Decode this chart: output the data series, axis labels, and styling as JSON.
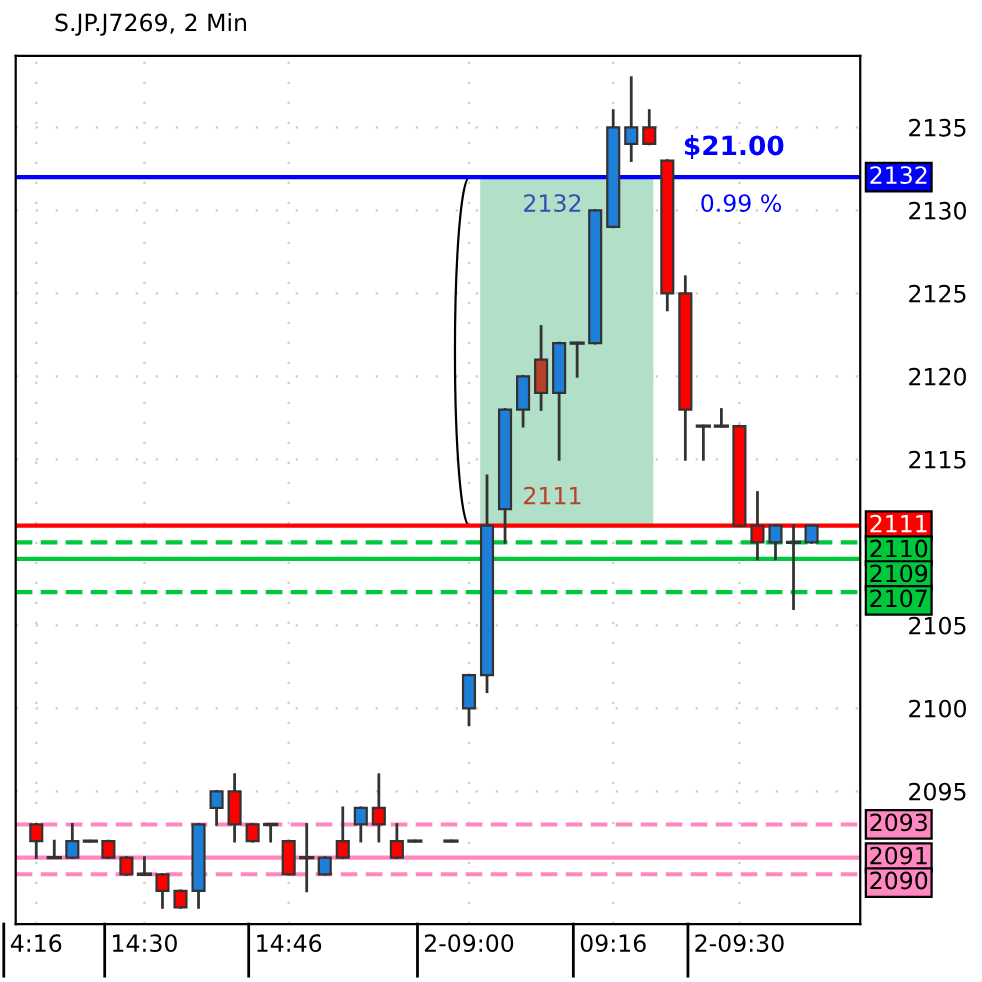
{
  "chart_data": {
    "type": "candlestick",
    "title": "S.JP.J7269, 2 Min",
    "categories": [
      "4:16",
      null,
      null,
      null,
      null,
      null,
      "14:30",
      null,
      null,
      null,
      null,
      null,
      null,
      null,
      "14:46",
      null,
      null,
      null,
      null,
      null,
      null,
      null,
      null,
      null,
      "2-09:00",
      null,
      null,
      null,
      null,
      null,
      null,
      null,
      "09:16",
      null,
      null,
      null,
      null,
      null,
      null,
      "2-09:30",
      null,
      null,
      null,
      null
    ],
    "ohlc": [
      [
        2093,
        2093,
        2091,
        2092
      ],
      [
        2091,
        2092,
        2091,
        2091
      ],
      [
        2091,
        2093,
        2091,
        2092
      ],
      [
        2092,
        2092,
        2092,
        2092
      ],
      [
        2092,
        2092,
        2091,
        2091
      ],
      [
        2091,
        2091,
        2090,
        2090
      ],
      [
        2090,
        2091,
        2090,
        2090
      ],
      [
        2090,
        2090,
        2088,
        2089
      ],
      [
        2089,
        2089,
        2088,
        2088
      ],
      [
        2089,
        2093,
        2088,
        2093
      ],
      [
        2094,
        2095,
        2093,
        2095
      ],
      [
        2095,
        2096,
        2092,
        2093
      ],
      [
        2093,
        2093,
        2092,
        2092
      ],
      [
        2093,
        2093,
        2092,
        2093
      ],
      [
        2092,
        2092,
        2090,
        2090
      ],
      [
        2091,
        2093,
        2089,
        2091
      ],
      [
        2090,
        2091,
        2090,
        2091
      ],
      [
        2092,
        2094,
        2091,
        2091
      ],
      [
        2093,
        2094,
        2092,
        2094
      ],
      [
        2094,
        2096,
        2092,
        2093
      ],
      [
        2092,
        2093,
        2091,
        2091
      ],
      [
        2092,
        2092,
        2092,
        2092
      ],
      null,
      [
        2092,
        2092,
        2092,
        2092
      ],
      [
        2100,
        2102,
        2099,
        2102
      ],
      [
        2102,
        2114,
        2101,
        2111
      ],
      [
        2112,
        2118,
        2110,
        2118
      ],
      [
        2118,
        2120,
        2117,
        2120
      ],
      [
        2121,
        2123,
        2118,
        2119
      ],
      [
        2119,
        2122,
        2115,
        2122
      ],
      [
        2122,
        2122,
        2120,
        2122
      ],
      [
        2122,
        2130,
        2122,
        2130
      ],
      [
        2129,
        2136,
        2129,
        2135
      ],
      [
        2134,
        2138,
        2133,
        2135
      ],
      [
        2135,
        2136,
        2134,
        2134
      ],
      [
        2133,
        2133,
        2124,
        2125
      ],
      [
        2125,
        2126,
        2115,
        2118
      ],
      [
        2117,
        2117,
        2115,
        2117
      ],
      [
        2117,
        2118,
        2117,
        2117
      ],
      [
        2117,
        2117,
        2111,
        2111
      ],
      [
        2111,
        2113,
        2109,
        2110
      ],
      [
        2110,
        2111,
        2109,
        2111
      ],
      [
        2110,
        2111,
        2106,
        2110
      ],
      [
        2110,
        2111,
        2110,
        2111
      ]
    ],
    "colors": [
      "#ff0000",
      "#333333",
      "#1e7fd8",
      "#333333",
      "#ff0000",
      "#ff0000",
      "#333333",
      "#ff0000",
      "#ff0000",
      "#1e7fd8",
      "#1e7fd8",
      "#ff0000",
      "#ff0000",
      "#333333",
      "#ff0000",
      "#333333",
      "#1e7fd8",
      "#ff0000",
      "#1e7fd8",
      "#ff0000",
      "#ff0000",
      "#333333",
      null,
      "#333333",
      "#1e7fd8",
      "#1e7fd8",
      "#1e7fd8",
      "#1e7fd8",
      "#b5412a",
      "#1e7fd8",
      "#333333",
      "#1e7fd8",
      "#1e7fd8",
      "#1e7fd8",
      "#ff0000",
      "#ff0000",
      "#ff0000",
      "#333333",
      "#333333",
      "#ff0000",
      "#ff0000",
      "#1e7fd8",
      "#333333",
      "#1e7fd8"
    ],
    "ylim": [
      2087,
      2139.3
    ],
    "yticks": [
      2095,
      2100,
      2105,
      2115,
      2120,
      2125,
      2130,
      2135
    ],
    "grid": true,
    "ref_lines": [
      {
        "axis": "y",
        "value": 2132,
        "label": "2132",
        "color": "#0000ff",
        "line_style": "solid"
      },
      {
        "axis": "y",
        "value": 2111,
        "label": "2111",
        "color": "#ff0000",
        "line_style": "solid"
      },
      {
        "axis": "y",
        "value": 2110,
        "label": "2110",
        "color": "#00c83c",
        "line_style": "dashed"
      },
      {
        "axis": "y",
        "value": 2109,
        "label": "2109",
        "color": "#00c83c",
        "line_style": "solid"
      },
      {
        "axis": "y",
        "value": 2107,
        "label": "2107",
        "color": "#00c83c",
        "line_style": "dashed"
      },
      {
        "axis": "y",
        "value": 2093,
        "label": "2093",
        "color": "#ff88c0",
        "line_style": "dashed"
      },
      {
        "axis": "y",
        "value": 2091,
        "label": "2091",
        "color": "#ff88c0",
        "line_style": "solid"
      },
      {
        "axis": "y",
        "value": 2090,
        "label": "2090",
        "color": "#ff88c0",
        "line_style": "dashed"
      }
    ],
    "bands": [
      {
        "axis": "y",
        "from": 2111,
        "to": 2132,
        "color": "#b2dfc8"
      }
    ],
    "annotations": [
      "$21.00",
      "0.99 %",
      "2132",
      "2111"
    ]
  }
}
